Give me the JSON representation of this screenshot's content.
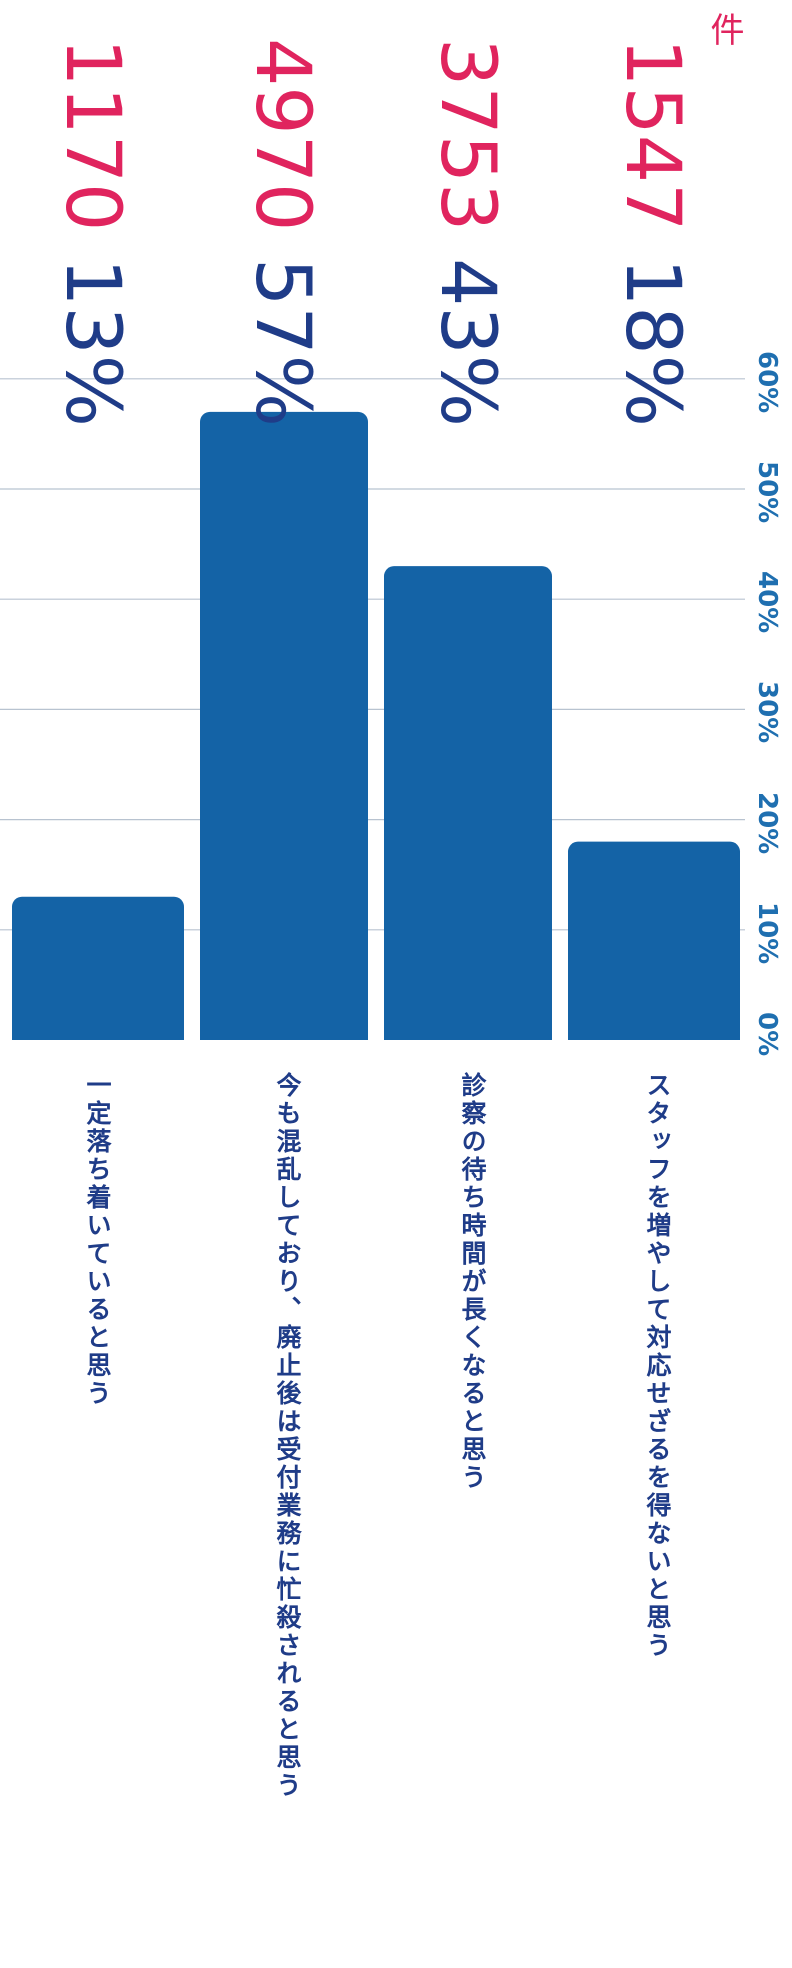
{
  "chart_data": {
    "type": "bar",
    "orientation": "horizontal (rotated 90°)",
    "categories": [
      "一定落ち着いていると思う",
      "今も混乱しており、廃止後は受付業務に忙殺されると思う",
      "診察の待ち時間が長くなると思う",
      "スタッフを増やして対応せざるを得ないと思う"
    ],
    "values": [
      13,
      57,
      43,
      18
    ],
    "value_labels": [
      "13%",
      "57%",
      "43%",
      "18%"
    ],
    "counts": [
      1170,
      4970,
      3753,
      1547
    ],
    "count_labels": [
      "1170",
      "4970",
      "3753",
      "1547"
    ],
    "count_unit": "件",
    "axis_ticks": [
      "0%",
      "10%",
      "20%",
      "30%",
      "40%",
      "50%",
      "60%"
    ],
    "xlim": [
      0,
      60
    ],
    "grid": true,
    "colors": {
      "bar": "#1463a6",
      "percent_text": "#1f3c88",
      "count_text": "#e0245e",
      "tick_text": "#1f6fb0",
      "grid": "#b8c3d0"
    }
  }
}
